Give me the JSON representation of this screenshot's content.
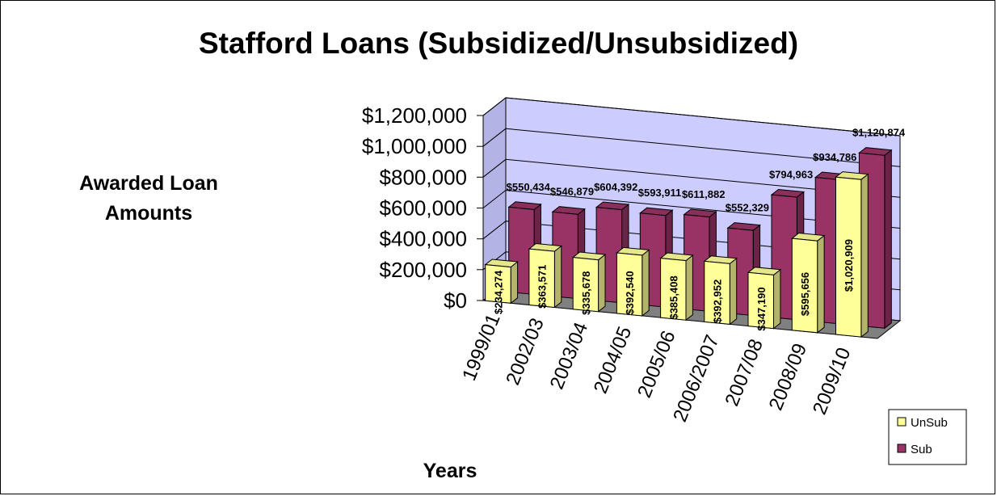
{
  "chart_data": {
    "type": "bar",
    "title": "Stafford Loans (Subsidized/Unsubsidized)",
    "ylabel_lines": [
      "Awarded Loan",
      "Amounts"
    ],
    "xlabel": "Years",
    "categories": [
      "1999/01",
      "2002/03",
      "2003/04",
      "2004/05",
      "2005/06",
      "2006/2007",
      "2007/08",
      "2008/09",
      "2009/10"
    ],
    "series": [
      {
        "name": "UnSub",
        "color": "#ffff99",
        "values": [
          234274,
          363571,
          335678,
          392540,
          385408,
          392952,
          347190,
          595656,
          1020909
        ],
        "labels": [
          "$234,274",
          "$363,571",
          "$335,678",
          "$392,540",
          "$385,408",
          "$392,952",
          "$347,190",
          "$595,656",
          "$1,020,909"
        ]
      },
      {
        "name": "Sub",
        "color": "#993366",
        "values": [
          550434,
          546879,
          604392,
          593911,
          611882,
          552329,
          794963,
          934786,
          1120874
        ],
        "labels": [
          "$550,434",
          "$546,879",
          "$604,392",
          "$593,911",
          "$611,882",
          "$552,329",
          "$794,963",
          "$934,786",
          "$1,120,874"
        ]
      }
    ],
    "ylim": [
      0,
      1200000
    ],
    "ytick_values": [
      0,
      200000,
      400000,
      600000,
      800000,
      1000000,
      1200000
    ],
    "ytick_labels": [
      "$0",
      "$200,000",
      "$400,000",
      "$600,000",
      "$800,000",
      "$1,000,000",
      "$1,200,000"
    ],
    "grid": true,
    "legend_position": "bottom-right",
    "wall_color": "#ccccff",
    "floor_color": "#808080"
  }
}
